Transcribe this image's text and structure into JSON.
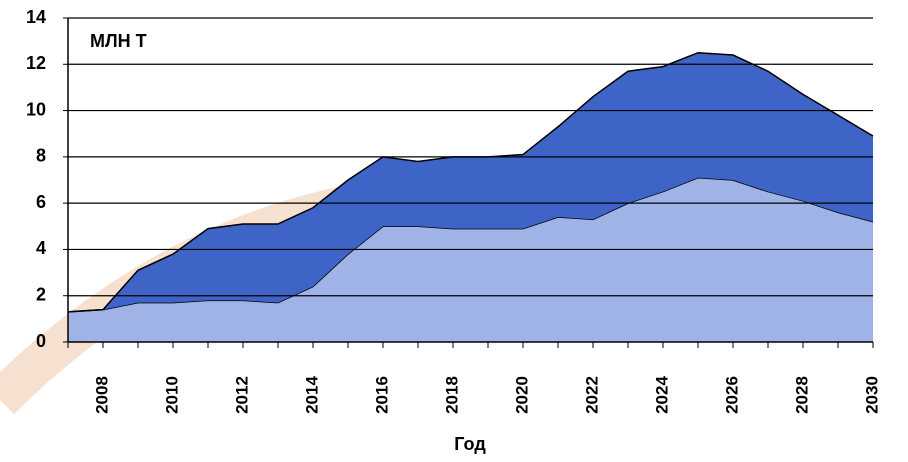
{
  "chart_data": {
    "type": "stacked_area",
    "annotation": "МЛН  Т",
    "x_label": "Год",
    "categories": [
      null,
      "2008",
      null,
      "2010",
      null,
      "2012",
      null,
      "2014",
      null,
      "2016",
      null,
      "2018",
      null,
      "2020",
      null,
      "2022",
      null,
      "2024",
      null,
      "2026",
      null,
      "2028",
      null,
      "2030"
    ],
    "series": [
      {
        "color": "#9fb3e6",
        "values": [
          1.3,
          1.4,
          1.7,
          1.7,
          1.8,
          1.8,
          1.7,
          2.4,
          3.8,
          5.0,
          5.0,
          4.9,
          4.9,
          4.9,
          5.4,
          5.3,
          6.0,
          6.5,
          7.1,
          7.0,
          6.5,
          6.1,
          5.6,
          5.2
        ]
      },
      {
        "color": "#3d64c6",
        "values": [
          0,
          0,
          1.4,
          2.1,
          3.1,
          3.3,
          3.4,
          3.4,
          3.2,
          3.0,
          2.8,
          3.1,
          3.1,
          3.2,
          3.9,
          5.3,
          5.7,
          5.4,
          5.4,
          5.4,
          5.2,
          4.6,
          4.2,
          3.7
        ]
      }
    ],
    "ylim": [
      0,
      14
    ],
    "yticks": [
      0,
      2,
      4,
      6,
      8,
      10,
      12,
      14
    ],
    "grid": true
  }
}
